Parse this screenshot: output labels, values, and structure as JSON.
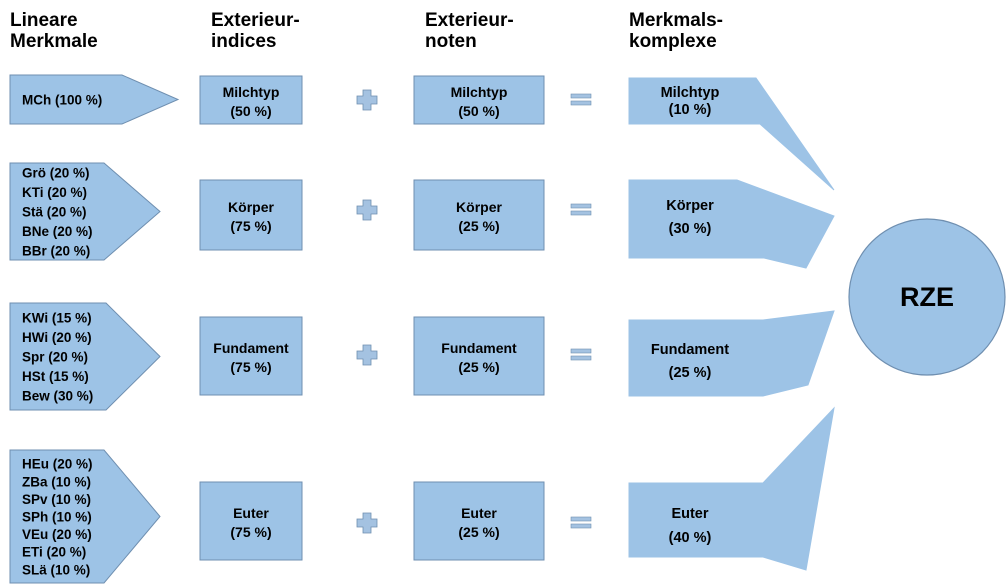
{
  "headers": [
    {
      "line1": "Lineare",
      "line2": "Merkmale"
    },
    {
      "line1": "Exterieur-",
      "line2": "indices"
    },
    {
      "line1": "Exterieur-",
      "line2": "noten"
    },
    {
      "line1": "Merkmals-",
      "line2": "komplexe"
    }
  ],
  "groups": [
    {
      "id": "milchtyp",
      "traits": [
        "MCh (100 %)"
      ],
      "index": {
        "name": "Milchtyp",
        "pct": "(50 %)"
      },
      "note": {
        "name": "Milchtyp",
        "pct": "(50 %)"
      },
      "complex": {
        "name": "Milchtyp",
        "pct": "(10 %)"
      }
    },
    {
      "id": "koerper",
      "traits": [
        "Grö  (20 %)",
        "KTi  (20 %)",
        "Stä  (20 %)",
        "BNe (20 %)",
        "BBr  (20 %)"
      ],
      "index": {
        "name": "Körper",
        "pct": "(75 %)"
      },
      "note": {
        "name": "Körper",
        "pct": "(25 %)"
      },
      "complex": {
        "name": "Körper",
        "pct": "(30 %)"
      }
    },
    {
      "id": "fundament",
      "traits": [
        "KWi (15 %)",
        "HWi (20 %)",
        "Spr  (20 %)",
        "HSt  (15 %)",
        "Bew (30 %)"
      ],
      "index": {
        "name": "Fundament",
        "pct": "(75 %)"
      },
      "note": {
        "name": "Fundament",
        "pct": "(25 %)"
      },
      "complex": {
        "name": "Fundament",
        "pct": "(25 %)"
      }
    },
    {
      "id": "euter",
      "traits": [
        "HEu (20 %)",
        "ZBa  (10 %)",
        "SPv  (10 %)",
        "SPh  (10 %)",
        "VEu  (20 %)",
        "ETi  (20 %)",
        "SLä  (10 %)"
      ],
      "index": {
        "name": "Euter",
        "pct": "(75 %)"
      },
      "note": {
        "name": "Euter",
        "pct": "(25 %)"
      },
      "complex": {
        "name": "Euter",
        "pct": "(40 %)"
      }
    }
  ],
  "operators": {
    "plus": "plus-icon",
    "equals": "equals-icon"
  },
  "result": "RZE",
  "colors": {
    "fill": "#9dc3e6",
    "stroke": "#6f8fb0",
    "operator": "#a4c2e1"
  }
}
